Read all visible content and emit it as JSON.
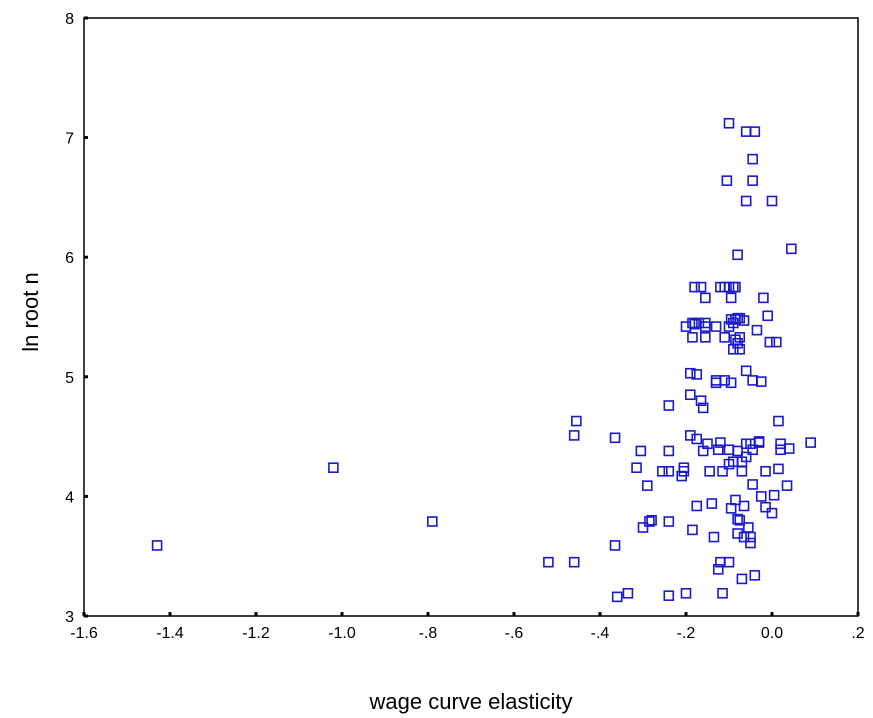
{
  "chart_data": {
    "type": "scatter",
    "title": "",
    "xlabel": "wage curve elasticity",
    "ylabel": "ln root n",
    "xlim": [
      -1.6,
      0.2
    ],
    "ylim": [
      3,
      8
    ],
    "grid": false,
    "marker": "hollow-square",
    "color": "#1a1acc",
    "x_ticks": [
      -1.6,
      -1.4,
      -1.2,
      -1.0,
      -0.8,
      -0.6,
      -0.4,
      -0.2,
      0.0,
      0.2
    ],
    "x_tick_labels": [
      "-1.6",
      "-1.4",
      "-1.2",
      "-1.0",
      "-.8",
      "-.6",
      "-.4",
      "-.2",
      "0.0",
      ".2"
    ],
    "y_ticks": [
      3,
      4,
      5,
      6,
      7,
      8
    ],
    "y_tick_labels": [
      "3",
      "4",
      "5",
      "6",
      "7",
      "8"
    ],
    "points": [
      [
        -1.43,
        3.59
      ],
      [
        -1.02,
        4.24
      ],
      [
        -0.79,
        3.79
      ],
      [
        -0.52,
        3.45
      ],
      [
        -0.46,
        3.45
      ],
      [
        -0.46,
        4.51
      ],
      [
        -0.455,
        4.63
      ],
      [
        -0.365,
        4.49
      ],
      [
        -0.365,
        3.59
      ],
      [
        -0.36,
        3.16
      ],
      [
        -0.335,
        3.19
      ],
      [
        -0.315,
        4.24
      ],
      [
        -0.305,
        4.38
      ],
      [
        -0.3,
        3.74
      ],
      [
        -0.29,
        4.09
      ],
      [
        -0.285,
        3.79
      ],
      [
        -0.28,
        3.8
      ],
      [
        -0.255,
        4.21
      ],
      [
        -0.24,
        4.21
      ],
      [
        -0.24,
        4.38
      ],
      [
        -0.24,
        4.76
      ],
      [
        -0.24,
        3.79
      ],
      [
        -0.24,
        3.17
      ],
      [
        -0.21,
        4.17
      ],
      [
        -0.205,
        4.24
      ],
      [
        -0.205,
        4.21
      ],
      [
        -0.2,
        3.19
      ],
      [
        -0.2,
        5.42
      ],
      [
        -0.19,
        5.03
      ],
      [
        -0.19,
        4.51
      ],
      [
        -0.19,
        4.85
      ],
      [
        -0.185,
        5.33
      ],
      [
        -0.185,
        5.45
      ],
      [
        -0.18,
        5.44
      ],
      [
        -0.18,
        5.75
      ],
      [
        -0.185,
        3.72
      ],
      [
        -0.175,
        5.02
      ],
      [
        -0.175,
        4.48
      ],
      [
        -0.175,
        3.92
      ],
      [
        -0.17,
        5.45
      ],
      [
        -0.165,
        5.75
      ],
      [
        -0.165,
        4.8
      ],
      [
        -0.16,
        4.74
      ],
      [
        -0.16,
        4.38
      ],
      [
        -0.155,
        5.66
      ],
      [
        -0.155,
        5.42
      ],
      [
        -0.155,
        5.33
      ],
      [
        -0.155,
        5.45
      ],
      [
        -0.15,
        4.44
      ],
      [
        -0.145,
        4.21
      ],
      [
        -0.14,
        3.94
      ],
      [
        -0.135,
        3.66
      ],
      [
        -0.13,
        5.42
      ],
      [
        -0.13,
        4.97
      ],
      [
        -0.13,
        4.95
      ],
      [
        -0.125,
        4.39
      ],
      [
        -0.125,
        3.39
      ],
      [
        -0.12,
        5.75
      ],
      [
        -0.12,
        4.45
      ],
      [
        -0.12,
        3.45
      ],
      [
        -0.115,
        4.21
      ],
      [
        -0.115,
        3.19
      ],
      [
        -0.11,
        5.75
      ],
      [
        -0.11,
        5.33
      ],
      [
        -0.11,
        4.97
      ],
      [
        -0.105,
        6.64
      ],
      [
        -0.1,
        5.42
      ],
      [
        -0.1,
        5.75
      ],
      [
        -0.1,
        4.39
      ],
      [
        -0.1,
        4.27
      ],
      [
        -0.1,
        3.45
      ],
      [
        -0.1,
        7.12
      ],
      [
        -0.095,
        5.66
      ],
      [
        -0.095,
        5.48
      ],
      [
        -0.095,
        4.95
      ],
      [
        -0.095,
        3.9
      ],
      [
        -0.09,
        5.75
      ],
      [
        -0.09,
        5.45
      ],
      [
        -0.09,
        5.23
      ],
      [
        -0.09,
        4.29
      ],
      [
        -0.085,
        5.75
      ],
      [
        -0.085,
        5.48
      ],
      [
        -0.085,
        5.31
      ],
      [
        -0.085,
        3.97
      ],
      [
        -0.08,
        6.02
      ],
      [
        -0.08,
        5.49
      ],
      [
        -0.08,
        5.28
      ],
      [
        -0.08,
        4.38
      ],
      [
        -0.08,
        3.81
      ],
      [
        -0.08,
        3.69
      ],
      [
        -0.075,
        5.49
      ],
      [
        -0.075,
        5.33
      ],
      [
        -0.075,
        5.23
      ],
      [
        -0.075,
        3.8
      ],
      [
        -0.07,
        4.29
      ],
      [
        -0.07,
        4.21
      ],
      [
        -0.07,
        3.31
      ],
      [
        -0.065,
        5.47
      ],
      [
        -0.065,
        3.92
      ],
      [
        -0.065,
        3.66
      ],
      [
        -0.06,
        7.05
      ],
      [
        -0.06,
        6.47
      ],
      [
        -0.06,
        5.05
      ],
      [
        -0.06,
        4.44
      ],
      [
        -0.06,
        4.33
      ],
      [
        -0.055,
        3.74
      ],
      [
        -0.05,
        4.44
      ],
      [
        -0.05,
        3.66
      ],
      [
        -0.05,
        3.61
      ],
      [
        -0.045,
        6.82
      ],
      [
        -0.045,
        6.64
      ],
      [
        -0.045,
        4.97
      ],
      [
        -0.045,
        4.39
      ],
      [
        -0.045,
        4.1
      ],
      [
        -0.04,
        7.05
      ],
      [
        -0.04,
        3.34
      ],
      [
        -0.035,
        5.39
      ],
      [
        -0.03,
        4.45
      ],
      [
        -0.03,
        4.46
      ],
      [
        -0.025,
        4.96
      ],
      [
        -0.025,
        4.0
      ],
      [
        -0.02,
        5.66
      ],
      [
        -0.015,
        4.21
      ],
      [
        -0.015,
        3.91
      ],
      [
        -0.01,
        5.51
      ],
      [
        -0.005,
        5.29
      ],
      [
        0.0,
        6.47
      ],
      [
        0.0,
        3.86
      ],
      [
        0.005,
        4.01
      ],
      [
        0.01,
        5.29
      ],
      [
        0.015,
        4.63
      ],
      [
        0.015,
        4.23
      ],
      [
        0.02,
        4.44
      ],
      [
        0.02,
        4.39
      ],
      [
        0.035,
        4.09
      ],
      [
        0.04,
        4.4
      ],
      [
        0.045,
        6.07
      ],
      [
        0.09,
        4.45
      ]
    ]
  }
}
